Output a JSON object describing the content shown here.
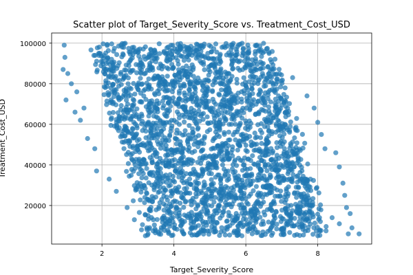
{
  "chart_data": {
    "type": "scatter",
    "title": "Scatter plot of Target_Severity_Score vs. Treatment_Cost_USD",
    "xlabel": "Target_Severity_Score",
    "ylabel": "Treatment_Cost_USD",
    "xlim": [
      0.6,
      9.5
    ],
    "ylim": [
      1000,
      105000
    ],
    "xticks": [
      2,
      4,
      6,
      8
    ],
    "yticks": [
      20000,
      40000,
      60000,
      80000,
      100000
    ],
    "grid": true,
    "point_color": "#1f77b4",
    "point_alpha": 0.7,
    "cloud": {
      "y_range": [
        5000,
        100000
      ],
      "x_left_at_top": 1.7,
      "x_left_at_bottom": 3.3,
      "x_right_at_top": 6.7,
      "x_right_at_bottom": 8.3
    },
    "outliers": [
      {
        "x": 0.95,
        "y": 99000
      },
      {
        "x": 0.97,
        "y": 93000
      },
      {
        "x": 0.92,
        "y": 87000
      },
      {
        "x": 1.05,
        "y": 85000
      },
      {
        "x": 1.15,
        "y": 80000
      },
      {
        "x": 1.0,
        "y": 72000
      },
      {
        "x": 1.25,
        "y": 66000
      },
      {
        "x": 1.3,
        "y": 76000
      },
      {
        "x": 1.4,
        "y": 62000
      },
      {
        "x": 1.6,
        "y": 53000
      },
      {
        "x": 1.8,
        "y": 48000
      },
      {
        "x": 1.85,
        "y": 37000
      },
      {
        "x": 2.2,
        "y": 33000
      },
      {
        "x": 2.4,
        "y": 27000
      },
      {
        "x": 2.7,
        "y": 19000
      },
      {
        "x": 2.9,
        "y": 13000
      },
      {
        "x": 3.1,
        "y": 8000
      },
      {
        "x": 1.5,
        "y": 68000
      },
      {
        "x": 7.3,
        "y": 83000
      },
      {
        "x": 7.7,
        "y": 74000
      },
      {
        "x": 7.9,
        "y": 68000
      },
      {
        "x": 8.0,
        "y": 61000
      },
      {
        "x": 8.1,
        "y": 55000
      },
      {
        "x": 8.2,
        "y": 48000
      },
      {
        "x": 8.5,
        "y": 46000
      },
      {
        "x": 8.6,
        "y": 39000
      },
      {
        "x": 8.75,
        "y": 25000
      },
      {
        "x": 8.8,
        "y": 19000
      },
      {
        "x": 8.9,
        "y": 16000
      },
      {
        "x": 8.6,
        "y": 11000
      },
      {
        "x": 8.95,
        "y": 9000
      },
      {
        "x": 8.85,
        "y": 6000
      },
      {
        "x": 9.15,
        "y": 6000
      },
      {
        "x": 8.4,
        "y": 14000
      },
      {
        "x": 8.7,
        "y": 31000
      }
    ]
  }
}
